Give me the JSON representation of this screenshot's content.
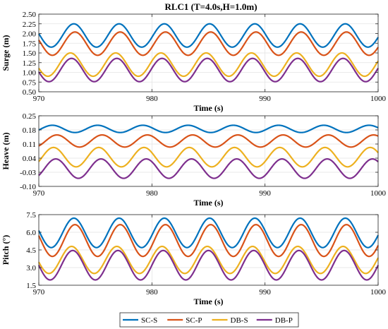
{
  "figure_title": "RLC1 (T=4.0s,H=1.0m)",
  "colors": {
    "SC-S": "#0072BD",
    "SC-P": "#D95319",
    "DB-S": "#EDB120",
    "DB-P": "#7E2F8E",
    "grid": "#e3e3e3",
    "axis": "#262626"
  },
  "legend": {
    "placement": "bottom-center",
    "entries": [
      "SC-S",
      "SC-P",
      "DB-S",
      "DB-P"
    ]
  },
  "chart_data": [
    {
      "type": "line",
      "title": "RLC1 (T=4.0s,H=1.0m)",
      "xlabel": "Time (s)",
      "ylabel": "Surge (m)",
      "xlim": [
        970,
        1000
      ],
      "ylim": [
        0.5,
        2.5
      ],
      "xticks": [
        970,
        980,
        990,
        1000
      ],
      "yticks": [
        "0.50",
        "0.75",
        "1.00",
        "1.25",
        "1.50",
        "1.75",
        "2.00",
        "2.25",
        "2.50"
      ],
      "grid": true,
      "period": 4.0,
      "series": [
        {
          "name": "SC-S",
          "mean": 1.95,
          "amplitude": 0.3,
          "first_peak_time": 973.1
        },
        {
          "name": "SC-P",
          "mean": 1.74,
          "amplitude": 0.3,
          "first_peak_time": 973.2
        },
        {
          "name": "DB-S",
          "mean": 1.2,
          "amplitude": 0.3,
          "first_peak_time": 972.8
        },
        {
          "name": "DB-P",
          "mean": 1.06,
          "amplitude": 0.3,
          "first_peak_time": 972.9
        }
      ]
    },
    {
      "type": "line",
      "xlabel": "Time (s)",
      "ylabel": "Heave (m)",
      "xlim": [
        970,
        1000
      ],
      "ylim": [
        -0.1,
        0.25
      ],
      "xticks": [
        970,
        980,
        990,
        1000
      ],
      "yticks": [
        "-0.10",
        "-0.03",
        "0.04",
        "0.11",
        "0.18",
        "0.25"
      ],
      "grid": true,
      "period": 4.0,
      "series": [
        {
          "name": "SC-S",
          "mean": 0.185,
          "amplitude": 0.018,
          "first_peak_time": 971.2
        },
        {
          "name": "SC-P",
          "mean": 0.125,
          "amplitude": 0.03,
          "first_peak_time": 971.6
        },
        {
          "name": "DB-S",
          "mean": 0.045,
          "amplitude": 0.048,
          "first_peak_time": 971.3
        },
        {
          "name": "DB-P",
          "mean": -0.012,
          "amplitude": 0.048,
          "first_peak_time": 971.5
        }
      ]
    },
    {
      "type": "line",
      "xlabel": "Time (s)",
      "ylabel": "Pitch (°)",
      "xlim": [
        970,
        1000
      ],
      "ylim": [
        1.5,
        7.5
      ],
      "xticks": [
        970,
        980,
        990,
        1000
      ],
      "yticks": [
        "1.5",
        "3.0",
        "4.5",
        "6.0",
        "7.5"
      ],
      "grid": true,
      "period": 4.0,
      "series": [
        {
          "name": "SC-S",
          "mean": 5.95,
          "amplitude": 1.25,
          "first_peak_time": 973.1
        },
        {
          "name": "SC-P",
          "mean": 5.3,
          "amplitude": 1.35,
          "first_peak_time": 973.2
        },
        {
          "name": "DB-S",
          "mean": 3.65,
          "amplitude": 1.15,
          "first_peak_time": 972.9
        },
        {
          "name": "DB-P",
          "mean": 3.2,
          "amplitude": 1.25,
          "first_peak_time": 973.0
        }
      ]
    }
  ]
}
